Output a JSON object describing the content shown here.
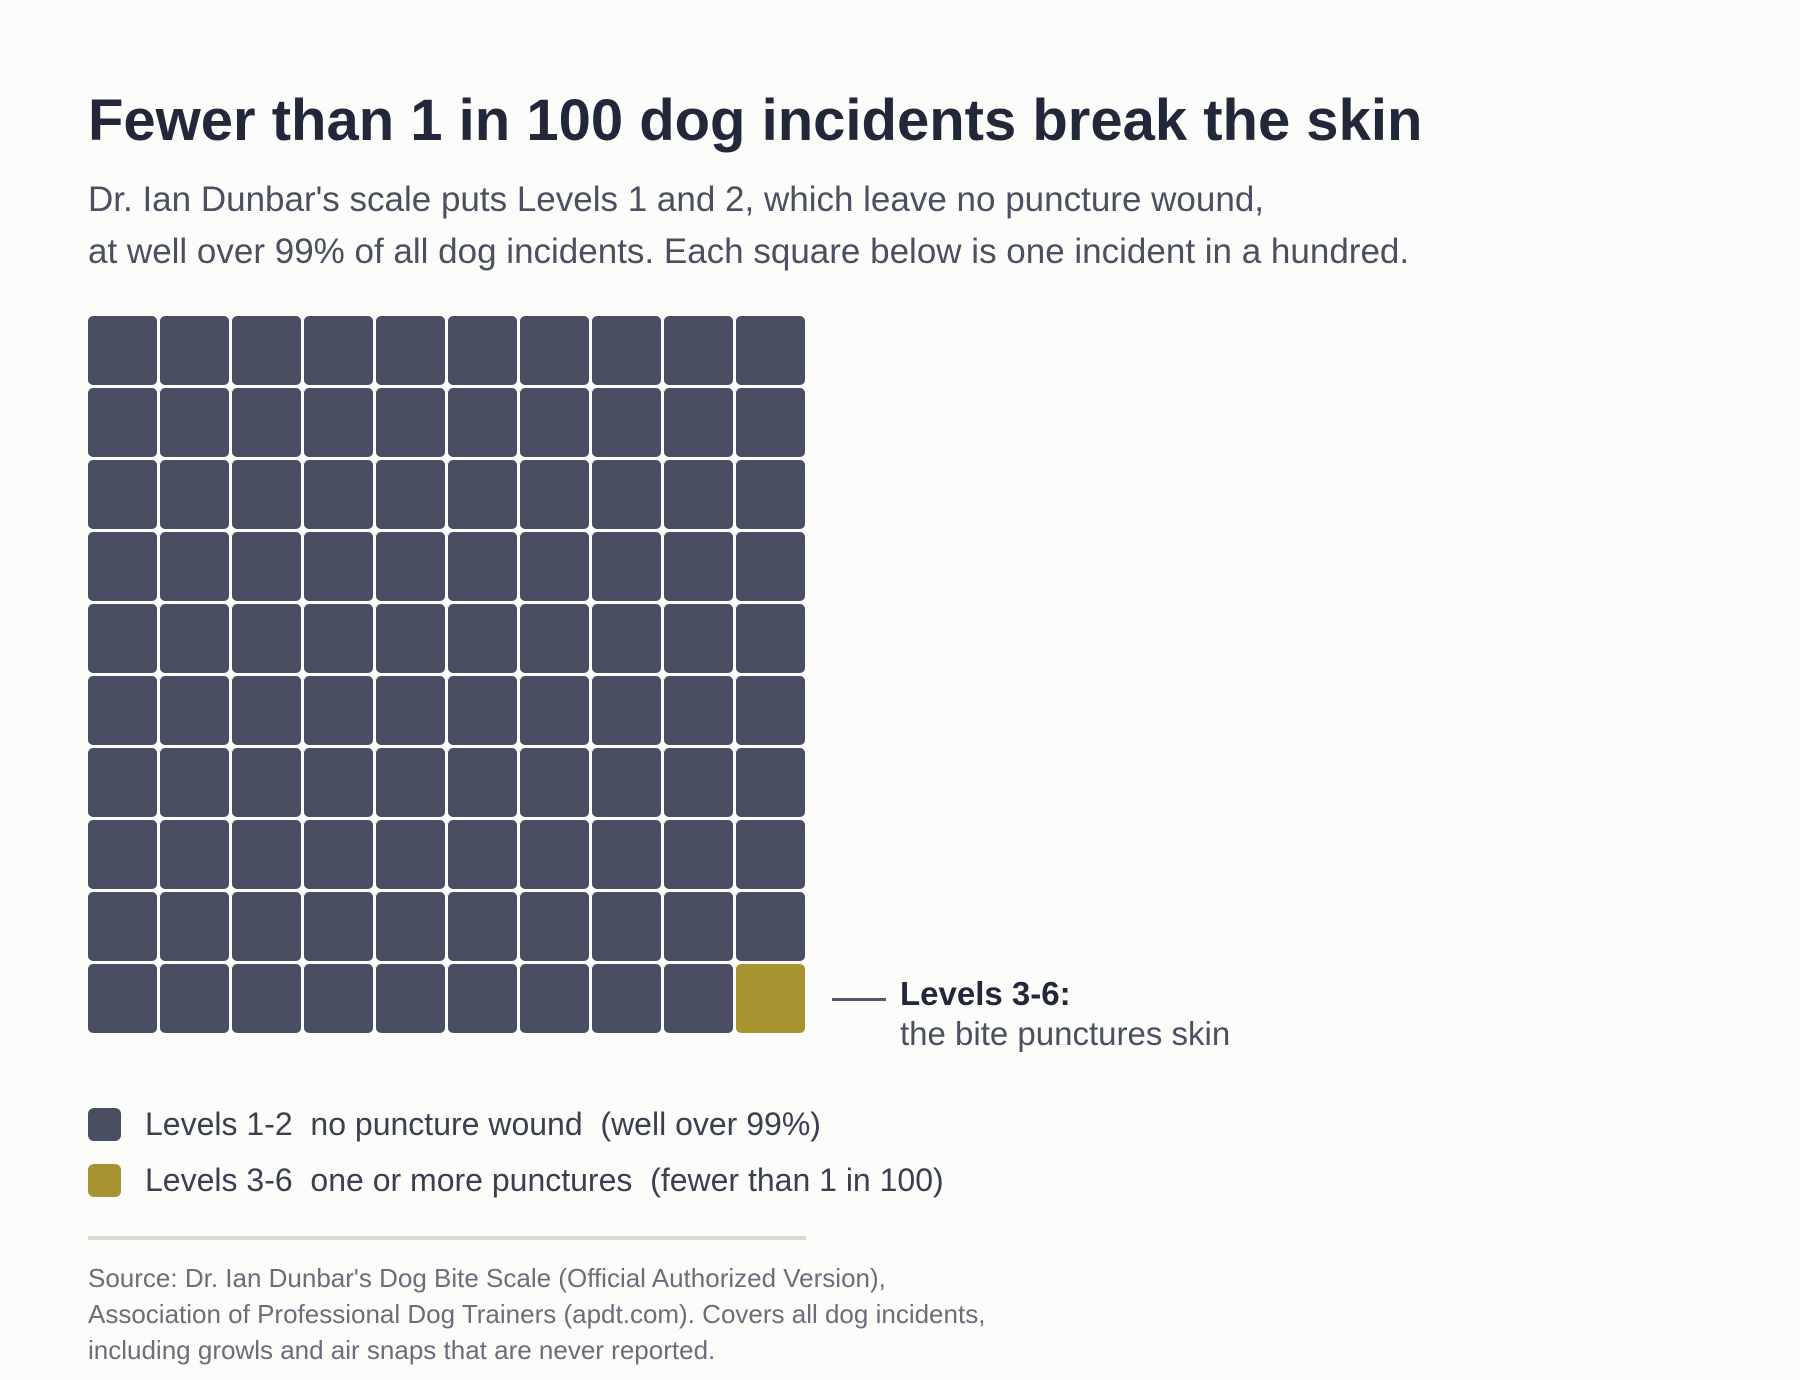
{
  "header": {
    "title": "Fewer than 1 in 100 dog incidents break the skin",
    "subtitle_lines": [
      "Dr. Ian Dunbar's scale puts Levels 1 and 2, which leave no puncture wound,",
      "at well over 99% of all dog incidents. Each square below is one incident in a hundred."
    ]
  },
  "chart_data": {
    "type": "waffle",
    "total": 100,
    "rows": 10,
    "columns": 10,
    "series": [
      {
        "name": "Levels 1-2",
        "count": 99,
        "color": "#4a4e62"
      },
      {
        "name": "Levels 3-6",
        "count": 1,
        "color": "#a89331"
      }
    ]
  },
  "callout": {
    "title": "Levels 3-6:",
    "text": "the bite punctures skin"
  },
  "legend": {
    "items": [
      {
        "label": "Levels 1-2  no puncture wound  (well over 99%)",
        "color": "#4a4e62"
      },
      {
        "label": "Levels 3-6  one or more punctures  (fewer than 1 in 100)",
        "color": "#a89331"
      }
    ]
  },
  "source": {
    "lines": [
      "Source: Dr. Ian Dunbar's Dog Bite Scale (Official Authorized Version),",
      "Association of Professional Dog Trainers (apdt.com). Covers all dog incidents,",
      "including growls and air snaps that are never reported."
    ]
  }
}
